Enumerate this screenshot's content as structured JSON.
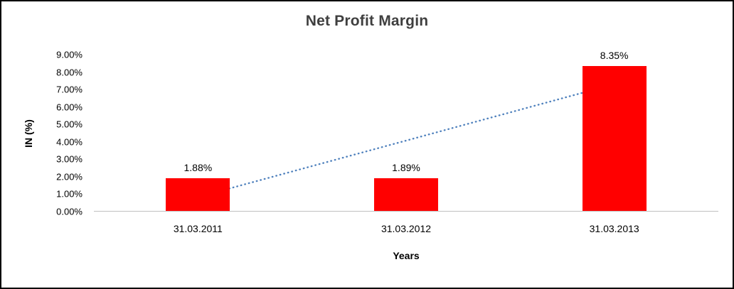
{
  "chart_data": {
    "type": "bar",
    "title": "Net Profit Margin",
    "xlabel": "Years",
    "ylabel": "IN (%)",
    "categories": [
      "31.03.2011",
      "31.03.2012",
      "31.03.2013"
    ],
    "values": [
      1.88,
      1.89,
      8.35
    ],
    "data_labels": [
      "1.88%",
      "1.89%",
      "8.35%"
    ],
    "ylim": [
      0,
      9
    ],
    "ytick_step": 1,
    "ytick_labels": [
      "0.00%",
      "1.00%",
      "2.00%",
      "3.00%",
      "4.00%",
      "5.00%",
      "6.00%",
      "7.00%",
      "8.00%",
      "9.00%"
    ],
    "grid": false,
    "legend": "none",
    "bar_color": "#ff0000",
    "axis_line_color": "#bfbfbf",
    "title_color": "#3f3f3f",
    "trendline": {
      "type": "linear",
      "style": "dotted",
      "color": "#4f81bd",
      "start_value": 0.8,
      "end_value": 7.3
    }
  }
}
